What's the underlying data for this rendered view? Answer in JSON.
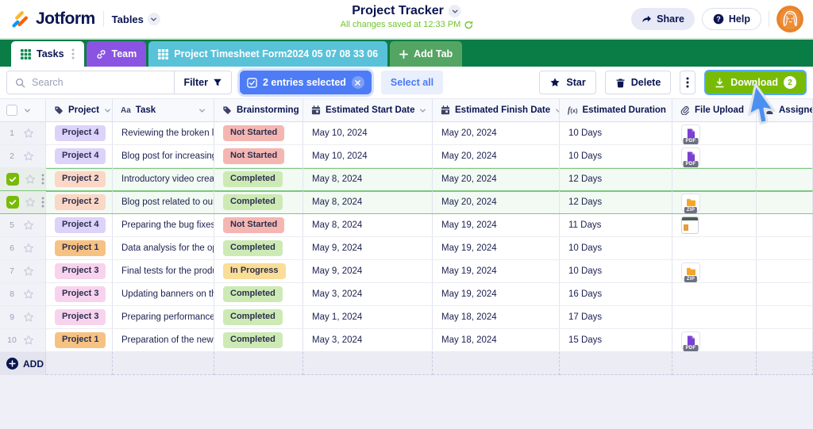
{
  "header": {
    "logo_text": "Jotform",
    "nav_label": "Tables",
    "title": "Project Tracker",
    "status": "All changes saved at 12:33 PM",
    "share_label": "Share",
    "help_label": "Help"
  },
  "tabs": [
    {
      "label": "Tasks",
      "icon": "grid",
      "active": true
    },
    {
      "label": "Team",
      "icon": "link"
    },
    {
      "label": "Project Timesheet Form2024 05 07 08 33 06",
      "icon": "grid"
    },
    {
      "label": "Add Tab",
      "icon": "plus"
    }
  ],
  "toolbar": {
    "search_placeholder": "Search",
    "filter_label": "Filter",
    "selection_label": "2 entries selected",
    "select_all_label": "Select all",
    "star_label": "Star",
    "delete_label": "Delete",
    "download_label": "Download",
    "download_count": "2"
  },
  "table": {
    "columns": [
      {
        "label": "Project",
        "icon": "tag"
      },
      {
        "label": "Task",
        "icon": "text"
      },
      {
        "label": "Brainstorming",
        "icon": "tag"
      },
      {
        "label": "Estimated Start Date",
        "icon": "calendar"
      },
      {
        "label": "Estimated Finish Date",
        "icon": "calendar"
      },
      {
        "label": "Estimated Duration",
        "icon": "formula"
      },
      {
        "label": "File Upload",
        "icon": "attachment"
      },
      {
        "label": "Assignee",
        "icon": "person"
      }
    ],
    "rows": [
      {
        "num": "1",
        "project": "Project 4",
        "project_key": "project_4",
        "task": "Reviewing the broken lin...",
        "status": "Not Started",
        "status_key": "not_started",
        "start": "May 10, 2024",
        "finish": "May 20, 2024",
        "duration": "10 Days",
        "file": "pdf",
        "selected": false
      },
      {
        "num": "2",
        "project": "Project 4",
        "project_key": "project_4",
        "task": "Blog post for increasing ...",
        "status": "Not Started",
        "status_key": "not_started",
        "start": "May 10, 2024",
        "finish": "May 20, 2024",
        "duration": "10 Days",
        "file": "pdf",
        "selected": false
      },
      {
        "num": "3",
        "project": "Project 2",
        "project_key": "project_2",
        "task": "Introductory video creati...",
        "status": "Completed",
        "status_key": "completed",
        "start": "May 8, 2024",
        "finish": "May 20, 2024",
        "duration": "12 Days",
        "file": "",
        "selected": true
      },
      {
        "num": "4",
        "project": "Project 2",
        "project_key": "project_2",
        "task": "Blog post related to our ...",
        "status": "Completed",
        "status_key": "completed",
        "start": "May 8, 2024",
        "finish": "May 20, 2024",
        "duration": "12 Days",
        "file": "zip",
        "selected": true
      },
      {
        "num": "5",
        "project": "Project 4",
        "project_key": "project_4",
        "task": "Preparing the bug fixes r...",
        "status": "Not Started",
        "status_key": "not_started",
        "start": "May 8, 2024",
        "finish": "May 19, 2024",
        "duration": "11 Days",
        "file": "image",
        "selected": false
      },
      {
        "num": "6",
        "project": "Project 1",
        "project_key": "project_1",
        "task": "Data analysis for the ope...",
        "status": "Completed",
        "status_key": "completed",
        "start": "May 9, 2024",
        "finish": "May 19, 2024",
        "duration": "10 Days",
        "file": "",
        "selected": false
      },
      {
        "num": "7",
        "project": "Project 3",
        "project_key": "project_3",
        "task": "Final tests for the produ...",
        "status": "In Progress",
        "status_key": "in_progress",
        "start": "May 9, 2024",
        "finish": "May 19, 2024",
        "duration": "10 Days",
        "file": "zip",
        "selected": false
      },
      {
        "num": "8",
        "project": "Project 3",
        "project_key": "project_3",
        "task": "Updating banners on the...",
        "status": "Completed",
        "status_key": "completed",
        "start": "May 3, 2024",
        "finish": "May 19, 2024",
        "duration": "16 Days",
        "file": "",
        "selected": false
      },
      {
        "num": "9",
        "project": "Project 3",
        "project_key": "project_3",
        "task": "Preparing performance ...",
        "status": "Completed",
        "status_key": "completed",
        "start": "May 1, 2024",
        "finish": "May 18, 2024",
        "duration": "17 Days",
        "file": "",
        "selected": false
      },
      {
        "num": "10",
        "project": "Project 1",
        "project_key": "project_1",
        "task": "Preparation of the new s...",
        "status": "Completed",
        "status_key": "completed",
        "start": "May 3, 2024",
        "finish": "May 18, 2024",
        "duration": "15 Days",
        "file": "pdf",
        "selected": false
      }
    ]
  },
  "add_row": {
    "label": "ADD"
  },
  "file_types": {
    "pdf": "PDF",
    "zip": "ZIP"
  },
  "palette": {
    "project_1": "#f6c283",
    "project_2": "#fbd7c5",
    "project_3": "#f8d3ed",
    "project_4": "#dcd2fa",
    "not_started": "#f5b6b2",
    "completed": "#cdeab5",
    "in_progress": "#fadd96",
    "accent_green": "#78bb07",
    "brand_navy": "#0a1551",
    "selection_blue": "#4d7cf6",
    "tab_bar_green": "#0a7c46",
    "tab_team_purple": "#8a53e2",
    "tab_sheet_cyan": "#59c2d9",
    "tab_add_green": "#54a563",
    "saved_text_green": "#72c32e"
  }
}
